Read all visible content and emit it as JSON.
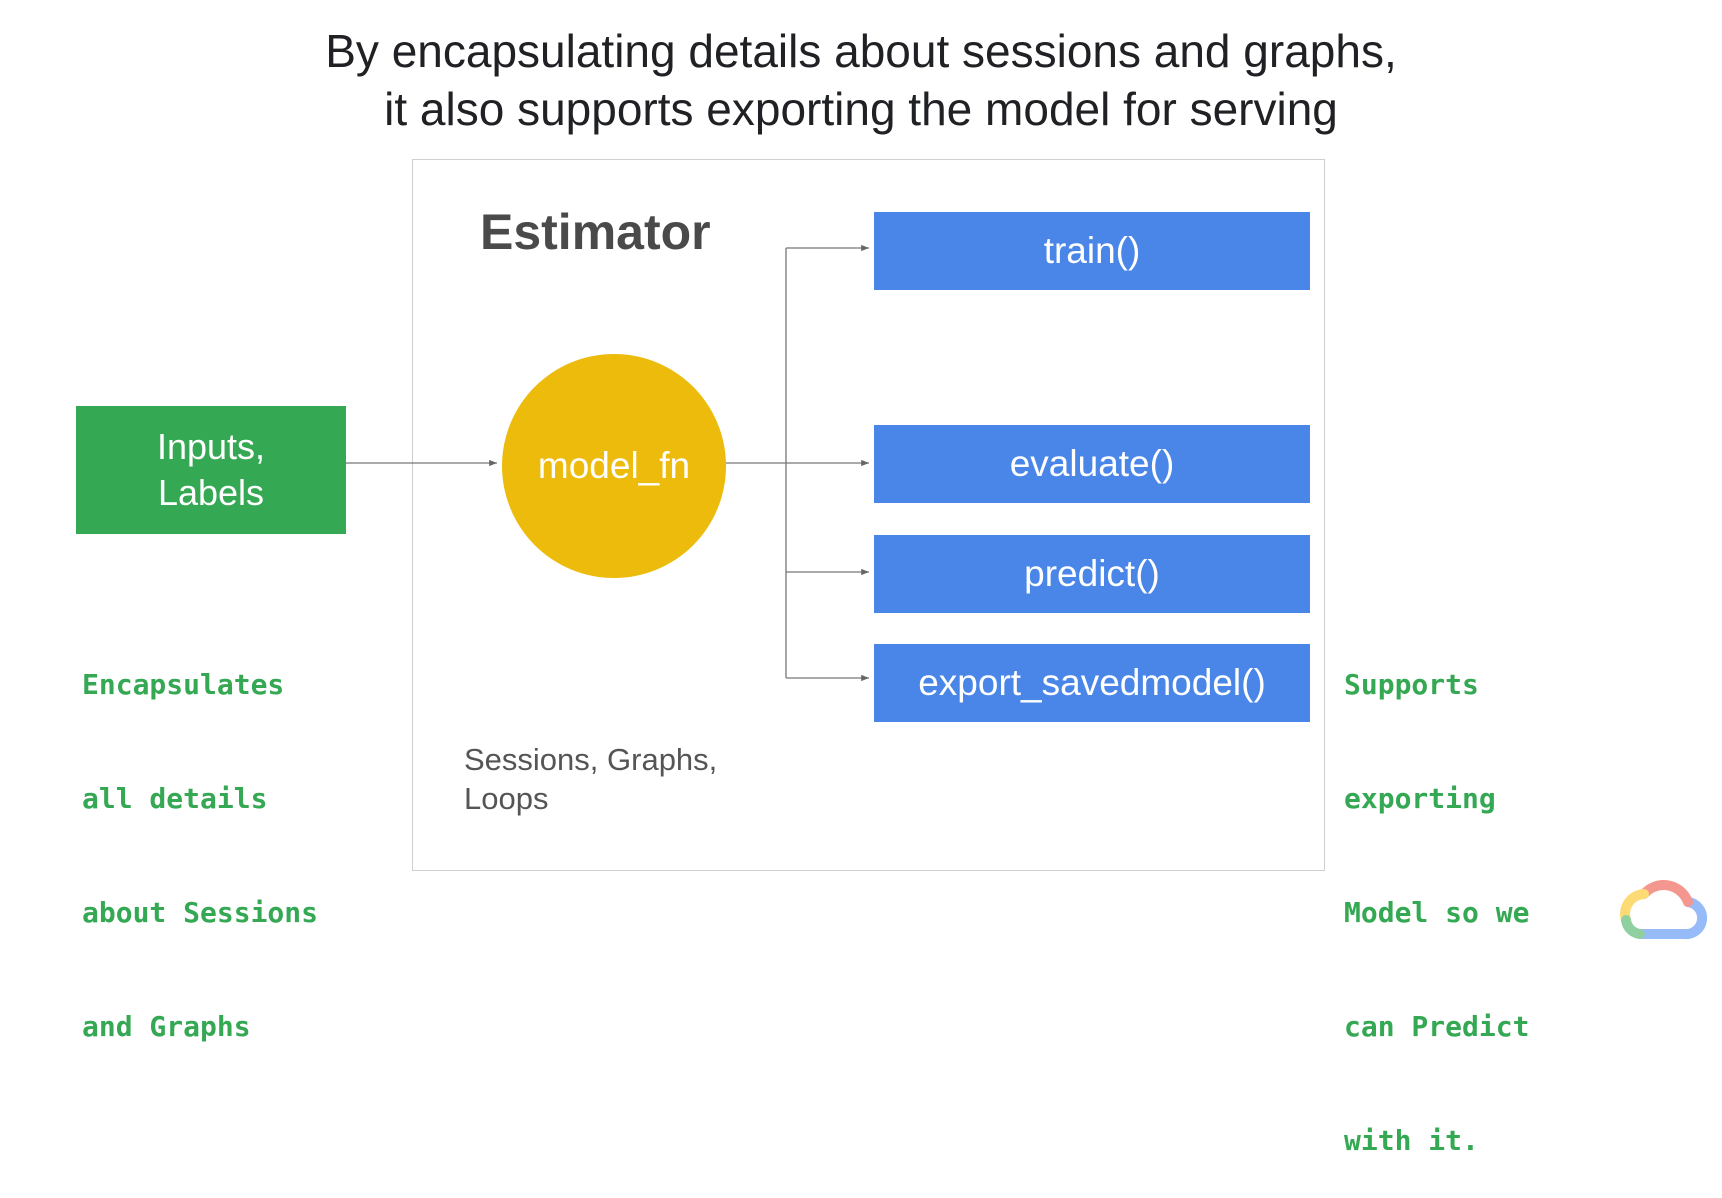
{
  "title": {
    "line1": "By encapsulating details about sessions and graphs,",
    "line2": "it also supports exporting the model for serving"
  },
  "diagram": {
    "estimator_label": "Estimator",
    "inputs": {
      "line1": "Inputs,",
      "line2": "Labels"
    },
    "model_fn": "model_fn",
    "methods": [
      "train()",
      "evaluate()",
      "predict()",
      "export_savedmodel()"
    ],
    "sessions_note": {
      "line1": "Sessions, Graphs,",
      "line2": "Loops"
    }
  },
  "notes": {
    "left": [
      "Encapsulates",
      "all details",
      "about Sessions",
      "and Graphs"
    ],
    "right": [
      "Supports",
      "exporting",
      "Model so we",
      "can Predict",
      "with it."
    ]
  },
  "colors": {
    "inputs_box": "#34a853",
    "model_fn": "#ecbb0c",
    "method_box": "#4a86e8",
    "note_text": "#34a853"
  },
  "icons": {
    "logo": "google-cloud-icon"
  }
}
